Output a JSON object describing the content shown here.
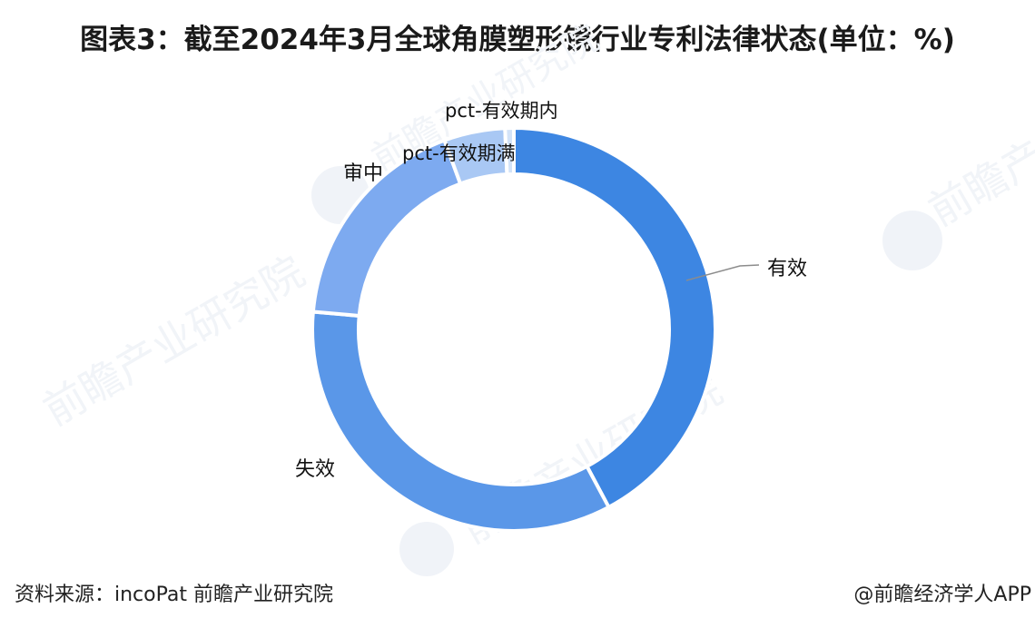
{
  "title": "图表3：截至2024年3月全球角膜塑形镜行业专利法律状态(单位：%)",
  "chart_data": {
    "type": "pie",
    "subtype": "donut",
    "title": "图表3：截至2024年3月全球角膜塑形镜行业专利法律状态(单位：%)",
    "unit": "%",
    "categories": [
      "有效",
      "失效",
      "审中",
      "pct-有效期满",
      "pct-有效期内"
    ],
    "values": [
      42.2,
      34.2,
      18.0,
      4.9,
      0.7
    ],
    "colors": [
      "#3d86e2",
      "#5a97e8",
      "#7daaf0",
      "#a9c8f4",
      "#d3e3f8"
    ],
    "start_angle_deg": 0,
    "direction": "clockwise",
    "legend": "none (direct labels)",
    "source": "资料来源：incoPat 前瞻产业研究院"
  },
  "labels": {
    "valid": "有效",
    "invalid": "失效",
    "pending": "审中",
    "pct_expired": "pct-有效期满",
    "pct_in_term": "pct-有效期内"
  },
  "footer": {
    "source": "资料来源：incoPat 前瞻产业研究院",
    "credit": "@前瞻经济学人APP"
  },
  "watermark": {
    "text": "前瞻产业研究院"
  }
}
